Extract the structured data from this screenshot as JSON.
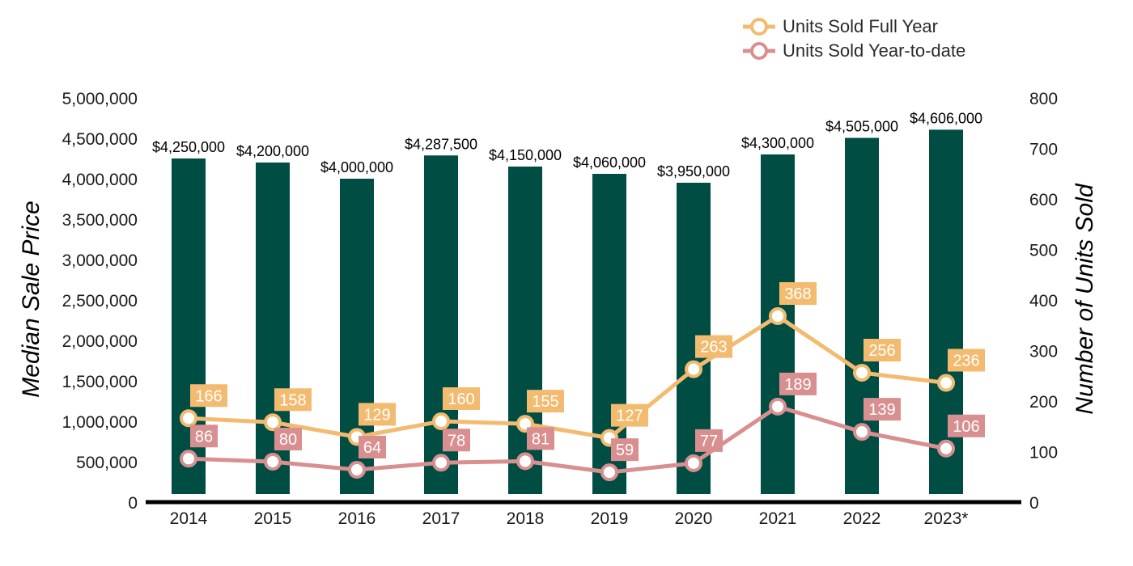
{
  "chart_data": {
    "type": "bar",
    "categories": [
      "2014",
      "2015",
      "2016",
      "2017",
      "2018",
      "2019",
      "2020",
      "2021",
      "2022",
      "2023*"
    ],
    "series": [
      {
        "name": "Median Sale Price",
        "kind": "bar",
        "axis": "left",
        "values": [
          4250000,
          4200000,
          4000000,
          4287500,
          4150000,
          4060000,
          3950000,
          4300000,
          4505000,
          4606000
        ],
        "labels": [
          "$4,250,000",
          "$4,200,000",
          "$4,000,000",
          "$4,287,500",
          "$4,150,000",
          "$4,060,000",
          "$3,950,000",
          "$4,300,000",
          "$4,505,000",
          "$4,606,000"
        ]
      },
      {
        "name": "Units Sold Full Year",
        "kind": "line",
        "axis": "right",
        "values": [
          166,
          158,
          129,
          160,
          155,
          127,
          263,
          368,
          256,
          236
        ]
      },
      {
        "name": "Units Sold Year-to-date",
        "kind": "line",
        "axis": "right",
        "values": [
          86,
          80,
          64,
          78,
          81,
          59,
          77,
          189,
          139,
          106
        ]
      }
    ],
    "ylabel": "Median Sale Price",
    "y2label": "Number of Units Sold",
    "ylim": [
      0,
      5000000
    ],
    "y2lim": [
      0,
      800
    ],
    "yticks": [
      "0",
      "500,000",
      "1,000,000",
      "1,500,000",
      "2,000,000",
      "2,500,000",
      "3,000,000",
      "3,500,000",
      "4,000,000",
      "4,500,000",
      "5,000,000"
    ],
    "y2ticks": [
      "0",
      "100",
      "200",
      "300",
      "400",
      "500",
      "600",
      "700",
      "800"
    ],
    "legend": {
      "placement": "top-right",
      "entries": [
        "Units Sold Full Year",
        "Units Sold Year-to-date"
      ]
    },
    "grid": false,
    "colors": {
      "bar": "#004d44",
      "full_year": "#f3bb70",
      "ytd": "#d98f90",
      "axis": "#000000"
    }
  }
}
